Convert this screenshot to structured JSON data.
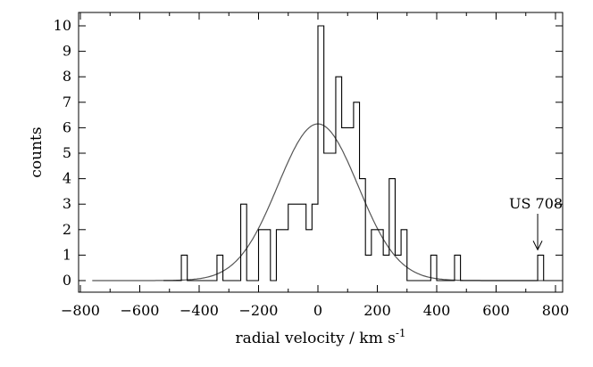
{
  "chart_data": {
    "type": "histogram",
    "xlabel": "radial velocity / km s",
    "xlabel_superscript": "-1",
    "ylabel": "counts",
    "xlim": [
      -800,
      800
    ],
    "ylim": [
      0,
      10
    ],
    "xticks": [
      -800,
      -600,
      -400,
      -200,
      0,
      200,
      400,
      600,
      800
    ],
    "yticks": [
      0,
      1,
      2,
      3,
      4,
      5,
      6,
      7,
      8,
      9,
      10
    ],
    "histogram": {
      "bin_width": 20,
      "bins": [
        {
          "x": -460,
          "count": 1
        },
        {
          "x": -340,
          "count": 1
        },
        {
          "x": -260,
          "count": 3
        },
        {
          "x": -200,
          "count": 2
        },
        {
          "x": -180,
          "count": 2
        },
        {
          "x": -140,
          "count": 2
        },
        {
          "x": -120,
          "count": 2
        },
        {
          "x": -100,
          "count": 3
        },
        {
          "x": -80,
          "count": 3
        },
        {
          "x": -60,
          "count": 3
        },
        {
          "x": -40,
          "count": 2
        },
        {
          "x": -20,
          "count": 3
        },
        {
          "x": 0,
          "count": 10
        },
        {
          "x": 20,
          "count": 5
        },
        {
          "x": 40,
          "count": 5
        },
        {
          "x": 60,
          "count": 8
        },
        {
          "x": 80,
          "count": 6
        },
        {
          "x": 100,
          "count": 6
        },
        {
          "x": 120,
          "count": 7
        },
        {
          "x": 140,
          "count": 4
        },
        {
          "x": 160,
          "count": 1
        },
        {
          "x": 180,
          "count": 2
        },
        {
          "x": 200,
          "count": 2
        },
        {
          "x": 220,
          "count": 1
        },
        {
          "x": 240,
          "count": 4
        },
        {
          "x": 260,
          "count": 1
        },
        {
          "x": 280,
          "count": 2
        },
        {
          "x": 380,
          "count": 1
        },
        {
          "x": 460,
          "count": 1
        },
        {
          "x": 740,
          "count": 1
        }
      ]
    },
    "gaussian_fit": {
      "mean": 0,
      "sigma": 135,
      "amplitude": 6.15,
      "x_range": [
        -760,
        760
      ]
    },
    "annotation": {
      "text": "US 708",
      "points_to": {
        "x": 740,
        "y": 1
      }
    },
    "colors": {
      "histogram": "#000000",
      "fit": "#555555",
      "axes": "#000000"
    },
    "grid": false,
    "legend": "none"
  }
}
